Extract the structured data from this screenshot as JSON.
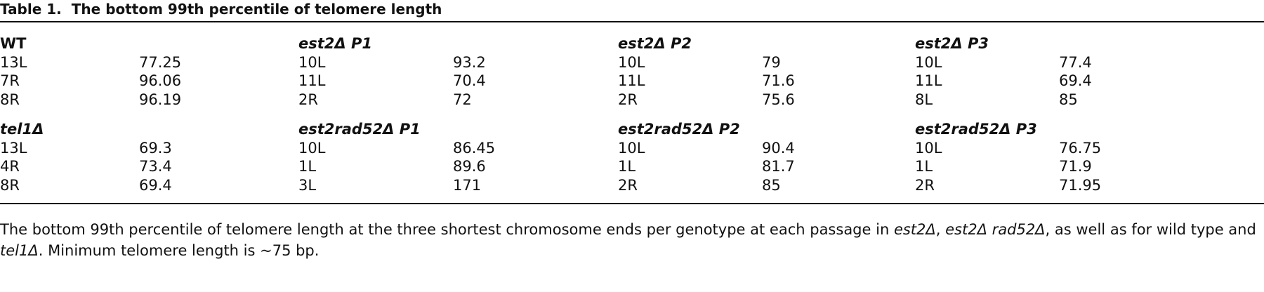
{
  "table": {
    "label": "Table 1.",
    "title": "The bottom 99th percentile of telomere length",
    "groups": [
      {
        "name": "WT",
        "italic": false,
        "rows": [
          [
            "13L",
            "77.25"
          ],
          [
            "7R",
            "96.06"
          ],
          [
            "8R",
            "96.19"
          ]
        ]
      },
      {
        "name": "est2Δ P1",
        "italic": true,
        "rows": [
          [
            "10L",
            "93.2"
          ],
          [
            "11L",
            "70.4"
          ],
          [
            "2R",
            "72"
          ]
        ]
      },
      {
        "name": "est2Δ P2",
        "italic": true,
        "rows": [
          [
            "10L",
            "79"
          ],
          [
            "11L",
            "71.6"
          ],
          [
            "2R",
            "75.6"
          ]
        ]
      },
      {
        "name": "est2Δ P3",
        "italic": true,
        "rows": [
          [
            "10L",
            "77.4"
          ],
          [
            "11L",
            "69.4"
          ],
          [
            "8L",
            "85"
          ]
        ]
      },
      {
        "name": "tel1Δ",
        "italic": true,
        "rows": [
          [
            "13L",
            "69.3"
          ],
          [
            "4R",
            "73.4"
          ],
          [
            "8R",
            "69.4"
          ]
        ]
      },
      {
        "name": "est2rad52Δ P1",
        "italic": true,
        "rows": [
          [
            "10L",
            "86.45"
          ],
          [
            "1L",
            "89.6"
          ],
          [
            "3L",
            "171"
          ]
        ]
      },
      {
        "name": "est2rad52Δ P2",
        "italic": true,
        "rows": [
          [
            "10L",
            "90.4"
          ],
          [
            "1L",
            "81.7"
          ],
          [
            "2R",
            "85"
          ]
        ]
      },
      {
        "name": "est2rad52Δ P3",
        "italic": true,
        "rows": [
          [
            "10L",
            "76.75"
          ],
          [
            "1L",
            "71.9"
          ],
          [
            "2R",
            "71.95"
          ]
        ]
      }
    ],
    "footnote": [
      {
        "text": "The bottom 99th percentile of telomere length at the three shortest chromosome ends per genotype at each passage in ",
        "italic": false
      },
      {
        "text": "est2Δ",
        "italic": true
      },
      {
        "text": ", ",
        "italic": false
      },
      {
        "text": "est2Δ rad52Δ",
        "italic": true
      },
      {
        "text": ", as well as for wild type and ",
        "italic": false
      },
      {
        "text": "tel1Δ",
        "italic": true
      },
      {
        "text": ". Minimum telomere length is ~75 bp.",
        "italic": false
      }
    ]
  }
}
